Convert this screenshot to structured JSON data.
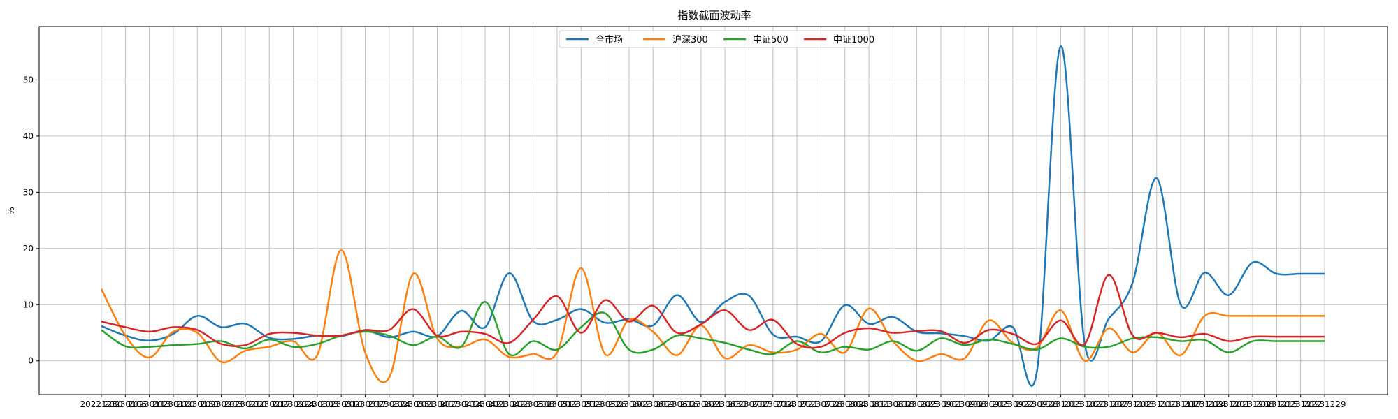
{
  "chart_data": {
    "type": "line",
    "title": "指数截面波动率",
    "xlabel": "",
    "ylabel": "%",
    "ylim": [
      -6,
      59.5
    ],
    "yticks": [
      0,
      10,
      20,
      30,
      40,
      50
    ],
    "grid": true,
    "legend_position": "top-center",
    "categories": [
      "20221230",
      "20230113",
      "20230130",
      "20230210",
      "20230224",
      "20230310",
      "20230324",
      "20230407",
      "20230421",
      "20230508",
      "20230519",
      "20230602",
      "20230616",
      "20230630",
      "20230714",
      "20230728",
      "20230811",
      "20230825",
      "20230908",
      "20230922",
      "20231013",
      "20231027",
      "20231110",
      "20231124",
      "20231208",
      "20231222",
      "20230106",
      "20230120",
      "20230203",
      "20230217",
      "20230303",
      "20230317",
      "20230331",
      "20230414",
      "20230428",
      "20230512",
      "20230526",
      "20230609",
      "20230621",
      "20230707",
      "20230721",
      "20230804",
      "20230818",
      "20230901",
      "20230915",
      "20230928",
      "20231020",
      "20231103",
      "20231117",
      "20231201",
      "20231215",
      "20231229"
    ],
    "x_order_note": "",
    "x": [
      "20221230",
      "20230106",
      "20230113",
      "20230120",
      "20230130",
      "20230203",
      "20230210",
      "20230217",
      "20230224",
      "20230303",
      "20230310",
      "20230317",
      "20230324",
      "20230331",
      "20230407",
      "20230414",
      "20230421",
      "20230428",
      "20230508",
      "20230512",
      "20230519",
      "20230526",
      "20230602",
      "20230609",
      "20230616",
      "20230621",
      "20230630",
      "20230707",
      "20230714",
      "20230721",
      "20230728",
      "20230804",
      "20230811",
      "20230818",
      "20230825",
      "20230901",
      "20230908",
      "20230915",
      "20230922",
      "20230928",
      "20231013",
      "20231020",
      "20231027",
      "20231103",
      "20231110",
      "20231117",
      "20231124",
      "20231201",
      "20231208",
      "20231215",
      "20231222",
      "20231229"
    ],
    "series": [
      {
        "name": "全市场",
        "color": "#1f77b4",
        "values": [
          6.2,
          4.5,
          3.6,
          4.8,
          8.0,
          6.0,
          6.6,
          4.1,
          3.9,
          4.5,
          4.4,
          5.4,
          4.2,
          5.2,
          4.4,
          8.9,
          6.0,
          15.6,
          7.1,
          7.3,
          9.2,
          6.8,
          7.4,
          6.3,
          11.7,
          6.9,
          10.5,
          11.6,
          4.7,
          4.3,
          3.5,
          9.9,
          6.6,
          7.8,
          5.2,
          4.9,
          4.4,
          3.6,
          6.0,
          -2.0,
          56.0,
          3.0,
          7.5,
          14.0,
          32.5,
          10.0,
          15.7,
          11.7,
          17.5,
          15.5,
          15.5,
          15.5
        ]
      },
      {
        "name": "沪深300",
        "color": "#ff7f0e",
        "values": [
          12.8,
          4.5,
          0.6,
          5.2,
          5.0,
          -0.2,
          1.8,
          2.5,
          3.5,
          1.0,
          19.7,
          1.5,
          -3.0,
          15.5,
          4.0,
          2.5,
          3.8,
          0.7,
          1.2,
          1.5,
          16.5,
          1.2,
          7.3,
          5.2,
          1.0,
          6.3,
          0.5,
          2.8,
          1.5,
          2.0,
          4.8,
          1.5,
          9.3,
          3.5,
          0.0,
          1.2,
          0.5,
          7.2,
          3.2,
          2.3,
          9.0,
          0.0,
          5.8,
          1.5,
          5.0,
          1.0,
          8.0,
          8.0,
          8.0,
          8.0,
          8.0,
          8.0
        ]
      },
      {
        "name": "中证500",
        "color": "#2ca02c",
        "values": [
          5.5,
          2.6,
          2.5,
          2.8,
          3.0,
          3.5,
          2.2,
          3.8,
          2.5,
          3.0,
          4.5,
          5.2,
          4.5,
          2.8,
          4.3,
          2.5,
          10.5,
          1.2,
          3.5,
          2.0,
          6.0,
          8.5,
          2.0,
          2.0,
          4.5,
          4.0,
          3.2,
          2.0,
          1.2,
          3.5,
          1.5,
          2.5,
          2.0,
          3.5,
          1.8,
          4.0,
          2.8,
          3.8,
          3.0,
          2.0,
          4.0,
          2.5,
          2.5,
          4.0,
          4.2,
          3.5,
          3.7,
          1.5,
          3.5,
          3.5,
          3.5,
          3.5
        ]
      },
      {
        "name": "中证1000",
        "color": "#d62728",
        "values": [
          7.0,
          6.0,
          5.2,
          6.0,
          5.5,
          3.0,
          2.8,
          4.8,
          5.0,
          4.5,
          4.5,
          5.5,
          5.5,
          9.2,
          4.5,
          5.2,
          4.8,
          3.2,
          7.3,
          11.5,
          5.0,
          10.8,
          7.0,
          9.8,
          5.0,
          6.5,
          9.0,
          5.5,
          7.3,
          3.0,
          2.5,
          5.0,
          5.8,
          5.0,
          5.3,
          5.3,
          3.2,
          5.5,
          4.8,
          3.0,
          7.2,
          3.0,
          15.3,
          4.5,
          5.0,
          4.2,
          4.8,
          3.5,
          4.3,
          4.3,
          4.3,
          4.3
        ]
      }
    ]
  }
}
